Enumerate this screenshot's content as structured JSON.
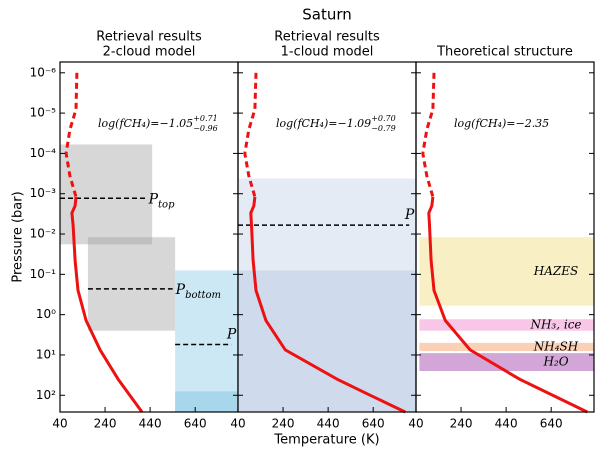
{
  "figure": {
    "title": "Saturn",
    "xlabel": "Temperature (K)",
    "ylabel": "Pressure (bar)"
  },
  "chart_data": [
    {
      "type": "profile",
      "title": [
        "Retrieval results",
        "2-cloud model"
      ],
      "xlim": [
        40,
        830
      ],
      "xticks": [
        40,
        240,
        440,
        640
      ],
      "yscale": "log",
      "yinvert": true,
      "ylim": [
        5.4e-07,
        260
      ],
      "yticks": [
        {
          "value": 1e-06,
          "label": "10⁻⁶"
        },
        {
          "value": 1e-05,
          "label": "10⁻⁵"
        },
        {
          "value": 0.0001,
          "label": "10⁻⁴"
        },
        {
          "value": 0.001,
          "label": "10⁻³"
        },
        {
          "value": 0.01,
          "label": "10⁻²"
        },
        {
          "value": 0.1,
          "label": "10⁻¹"
        },
        {
          "value": 1,
          "label": "10⁰"
        },
        {
          "value": 10,
          "label": "10¹"
        },
        {
          "value": 100,
          "label": "10²"
        }
      ],
      "regions": [
        {
          "x": [
            40,
            449
          ],
          "y": [
            6e-05,
            0.018
          ],
          "color": "#9a9a9a",
          "opacity": 0.4
        },
        {
          "x": [
            164,
            551
          ],
          "y": [
            0.012,
            2.5
          ],
          "color": "#9a9a9a",
          "opacity": 0.4
        },
        {
          "x": [
            551,
            830
          ],
          "y": [
            0.08,
            260
          ],
          "color": "#bfe2f2",
          "opacity": 0.8
        },
        {
          "x": [
            551,
            830
          ],
          "y": [
            80,
            260
          ],
          "color": "#8fcbe6",
          "opacity": 0.6
        }
      ],
      "levels": [
        {
          "label": "P",
          "sub": "top",
          "y": 0.0013,
          "x": [
            40,
            420
          ]
        },
        {
          "label": "P",
          "sub": "bottom",
          "y": 0.23,
          "x": [
            164,
            540
          ]
        },
        {
          "label": "P",
          "y": 5.5,
          "x": [
            551,
            800
          ]
        }
      ],
      "annotation": {
        "base": "log(fCH₄)=−1.05",
        "plus": "+0.71",
        "minus": "−0.96"
      },
      "lines": [
        {
          "style": "dashed",
          "color": "#ee1111",
          "x": [
            115,
            111,
            84,
            67,
            84,
            111
          ],
          "y": [
            1e-06,
            8e-06,
            2.6e-05,
            0.0001,
            0.00036,
            0.0012
          ]
        },
        {
          "style": "solid",
          "color": "#ee1111",
          "x": [
            111,
            107,
            93,
            98,
            107,
            120,
            156,
            218,
            298,
            404
          ],
          "y": [
            0.0012,
            0.002,
            0.003,
            0.006,
            0.045,
            0.25,
            1.4,
            7.5,
            40,
            260
          ]
        }
      ]
    },
    {
      "type": "profile",
      "title": [
        "Retrieval results",
        "1-cloud model"
      ],
      "xlim": [
        40,
        830
      ],
      "xticks": [
        40,
        240,
        440,
        640
      ],
      "yscale": "log",
      "yinvert": true,
      "ylim": [
        5.4e-07,
        260
      ],
      "yticks": [
        1e-06,
        1e-05,
        0.0001,
        0.001,
        0.01,
        0.1,
        1,
        10,
        100
      ],
      "regions": [
        {
          "x": [
            40,
            830
          ],
          "y": [
            0.00042,
            260
          ],
          "color": "#c4d3e8",
          "opacity": 0.45
        },
        {
          "x": [
            40,
            830
          ],
          "y": [
            0.08,
            260
          ],
          "color": "#a9bedf",
          "opacity": 0.35
        }
      ],
      "levels": [
        {
          "label": "P",
          "y": 0.006,
          "x": [
            40,
            800
          ]
        }
      ],
      "annotation": {
        "base": "log(fCH₄)=−1.09",
        "plus": "+0.70",
        "minus": "−0.79"
      },
      "lines": [
        {
          "style": "dashed",
          "color": "#ee1111",
          "x": [
            120,
            115,
            88,
            70,
            88,
            115
          ],
          "y": [
            1e-06,
            8e-06,
            2.6e-05,
            0.0001,
            0.00036,
            0.0012
          ]
        },
        {
          "style": "solid",
          "color": "#ee1111",
          "x": [
            115,
            110,
            97,
            100,
            107,
            120,
            164,
            250,
            480,
            627,
            782
          ],
          "y": [
            0.0012,
            0.002,
            0.003,
            0.006,
            0.045,
            0.25,
            1.4,
            7.5,
            40,
            100,
            260
          ]
        }
      ]
    },
    {
      "type": "profile",
      "title": [
        "Theoretical structure"
      ],
      "xlim": [
        40,
        830
      ],
      "xticks": [
        40,
        240,
        440,
        640
      ],
      "yscale": "log",
      "yinvert": true,
      "ylim": [
        5.4e-07,
        260
      ],
      "yticks": [
        1e-06,
        1e-05,
        0.0001,
        0.001,
        0.01,
        0.1,
        1,
        10,
        100
      ],
      "regions": [
        {
          "x": [
            55,
            830
          ],
          "y": [
            0.012,
            0.6
          ],
          "color": "#f9efc4",
          "opacity": 1,
          "label": "HAZES"
        },
        {
          "x": [
            55,
            830
          ],
          "y": [
            1.3,
            2.5
          ],
          "color": "#f8c6e6",
          "opacity": 1,
          "label": "NH₃, ice"
        },
        {
          "x": [
            55,
            830
          ],
          "y": [
            5,
            8
          ],
          "color": "#fad0b6",
          "opacity": 1,
          "label": "NH₄SH"
        },
        {
          "x": [
            55,
            830
          ],
          "y": [
            9,
            25
          ],
          "color": "#d2a6d6",
          "opacity": 1,
          "label": "H₂O"
        }
      ],
      "levels": [],
      "annotation": {
        "base": "log(fCH₄)=−2.35"
      },
      "lines": [
        {
          "style": "dashed",
          "color": "#ee1111",
          "x": [
            120,
            115,
            88,
            70,
            88,
            115
          ],
          "y": [
            1e-06,
            8e-06,
            2.6e-05,
            0.0001,
            0.00036,
            0.0012
          ]
        },
        {
          "style": "solid",
          "color": "#ee1111",
          "x": [
            115,
            110,
            97,
            100,
            107,
            120,
            170,
            280,
            500,
            800
          ],
          "y": [
            0.0012,
            0.002,
            0.003,
            0.006,
            0.045,
            0.25,
            1.4,
            7.5,
            40,
            260
          ]
        }
      ]
    }
  ]
}
